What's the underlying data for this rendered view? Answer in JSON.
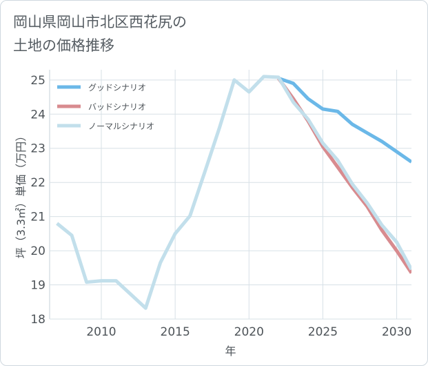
{
  "title": "岡山県岡山市北区西花尻の\n土地の価格推移",
  "chart_data": {
    "type": "line",
    "title": "岡山県岡山市北区西花尻の土地の価格推移",
    "xlabel": "年",
    "ylabel": "坪（3.3㎡）単価（万円）",
    "xlim": [
      2006.5,
      2031
    ],
    "ylim": [
      18,
      25.3
    ],
    "xticks": [
      2010,
      2015,
      2020,
      2025,
      2030
    ],
    "yticks": [
      18,
      19,
      20,
      21,
      22,
      23,
      24,
      25
    ],
    "legend_position": "top-left",
    "series": [
      {
        "name": "グッドシナリオ",
        "color": "#6bb8e8",
        "x": [
          2022,
          2023,
          2024,
          2025,
          2026,
          2027,
          2028,
          2029,
          2030,
          2031
        ],
        "values": [
          25.05,
          24.9,
          24.45,
          24.15,
          24.08,
          23.7,
          23.45,
          23.2,
          22.9,
          22.6
        ]
      },
      {
        "name": "バッドシナリオ",
        "color": "#d88b8f",
        "x": [
          2022,
          2023,
          2024,
          2025,
          2026,
          2027,
          2028,
          2029,
          2030,
          2031
        ],
        "values": [
          25.05,
          24.45,
          23.8,
          23.05,
          22.45,
          21.85,
          21.3,
          20.6,
          20.0,
          19.35
        ]
      },
      {
        "name": "ノーマルシナリオ",
        "color": "#c2dfeb",
        "x": [
          2007,
          2008,
          2009,
          2010,
          2011,
          2012,
          2013,
          2014,
          2015,
          2016,
          2017,
          2018,
          2019,
          2020,
          2021,
          2022,
          2023,
          2024,
          2025,
          2026,
          2027,
          2028,
          2029,
          2030,
          2031
        ],
        "values": [
          20.8,
          20.45,
          19.08,
          19.12,
          19.12,
          18.72,
          18.32,
          19.65,
          20.5,
          21.02,
          22.3,
          23.6,
          25.0,
          24.65,
          25.1,
          25.08,
          24.35,
          23.85,
          23.15,
          22.65,
          21.95,
          21.4,
          20.75,
          20.25,
          19.45
        ]
      }
    ]
  }
}
